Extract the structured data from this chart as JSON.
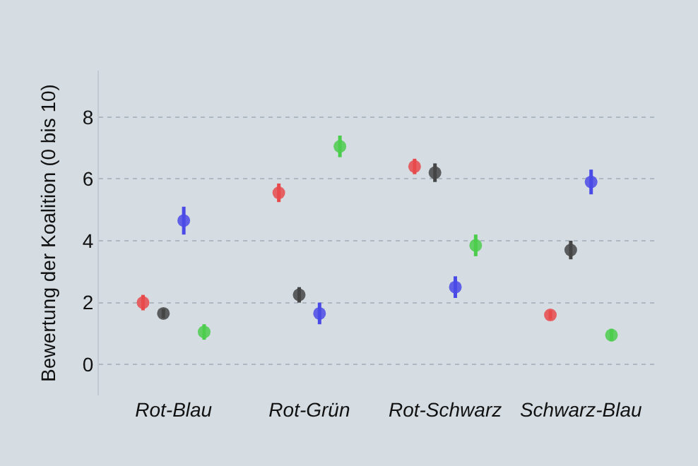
{
  "chart_data": {
    "type": "scatter",
    "ylabel": "Bewertung der Koalition (0 bis 10)",
    "categories": [
      "Rot-Blau",
      "Rot-Grün",
      "Rot-Schwarz",
      "Schwarz-Blau"
    ],
    "series": [
      {
        "color": "#e84a4c",
        "values": [
          2.0,
          5.55,
          6.4,
          1.6
        ],
        "errors": [
          0.25,
          0.3,
          0.25,
          0.15
        ]
      },
      {
        "color": "#454545",
        "values": [
          1.65,
          2.25,
          6.2,
          3.7
        ],
        "errors": [
          0.15,
          0.25,
          0.3,
          0.3
        ]
      },
      {
        "color": "#4a4ae6",
        "values": [
          4.65,
          1.65,
          2.5,
          5.9
        ],
        "errors": [
          0.45,
          0.35,
          0.35,
          0.4
        ]
      },
      {
        "color": "#4ccc4c",
        "values": [
          1.05,
          7.05,
          3.85,
          0.95
        ],
        "errors": [
          0.25,
          0.35,
          0.35,
          0.2
        ]
      }
    ],
    "ylim": [
      -1,
      9.5
    ],
    "yticks": [
      0,
      2,
      4,
      6,
      8
    ],
    "grid": "y",
    "marker": "circle",
    "legend": false
  }
}
